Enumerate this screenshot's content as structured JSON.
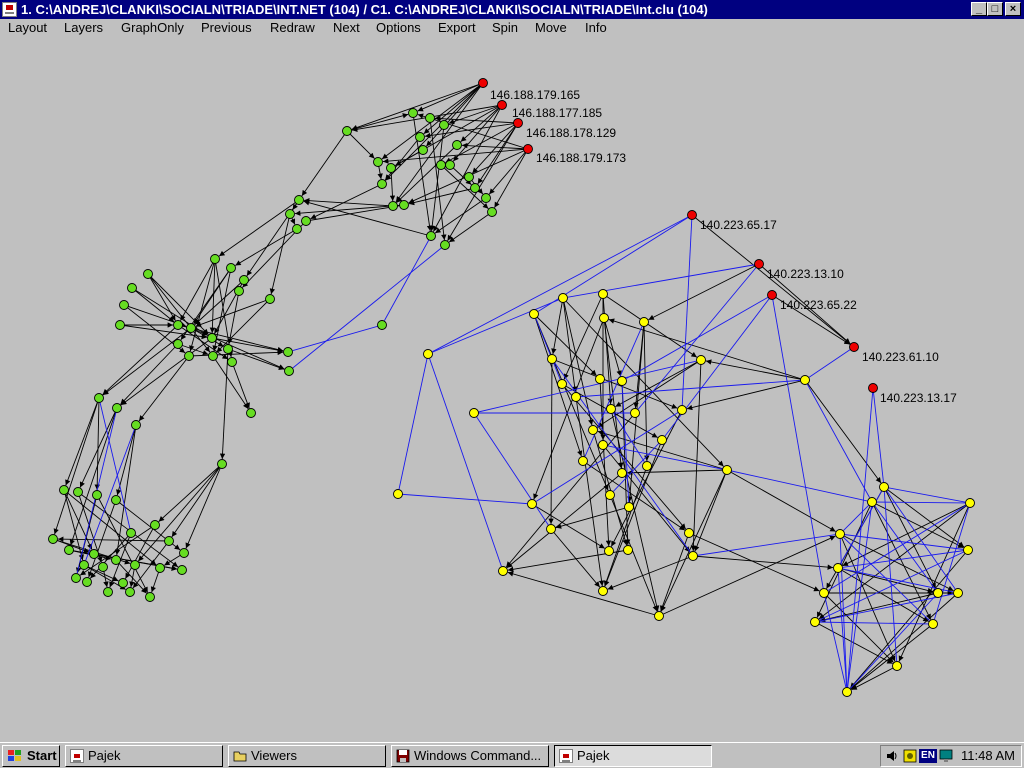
{
  "window": {
    "title": "1. C:\\ANDREJ\\CLANKI\\SOCIALN\\TRIADE\\INT.NET (104) / C1. C:\\ANDREJ\\CLANKI\\SOCIALN\\TRIADE\\Int.clu (104)",
    "minimize_glyph": "_",
    "maximize_glyph": "□",
    "close_glyph": "×",
    "app_icon": "pajek-icon"
  },
  "menu": {
    "items": [
      "Layout",
      "Layers",
      "GraphOnly",
      "Previous",
      "Redraw",
      "Next",
      "Options",
      "Export",
      "Spin",
      "Move",
      "Info"
    ]
  },
  "colors": {
    "canvas_bg": "#c0c0c0",
    "green_node": "#66dd22",
    "yellow_node": "#ffff00",
    "red_node": "#ee0000",
    "black_edge": "#000000",
    "blue_edge": "#1a1aee"
  },
  "labels": {
    "g1": "146.188.179.165",
    "g2": "146.188.177.185",
    "g3": "146.188.178.129",
    "g4": "146.188.179.173",
    "y1": "140.223.65.17",
    "y2": "140.223.13.10",
    "y3": "140.223.65.22",
    "y4": "140.223.61.10",
    "y5": "140.223.13.17"
  },
  "taskbar": {
    "start_label": "Start",
    "tasks": [
      {
        "label": "Pajek",
        "icon": "pajek-icon",
        "active": false
      },
      {
        "label": "Viewers",
        "icon": "folder-icon",
        "active": false
      },
      {
        "label": "Windows Command...",
        "icon": "floppy-icon",
        "active": false
      },
      {
        "label": "Pajek",
        "icon": "pajek-icon",
        "active": true
      }
    ],
    "tray": {
      "icons": [
        "speaker-icon",
        "tray-app-icon",
        "en-keyboard-icon",
        "monitor-icon"
      ],
      "language": "EN",
      "time": "11:48 AM"
    }
  }
}
